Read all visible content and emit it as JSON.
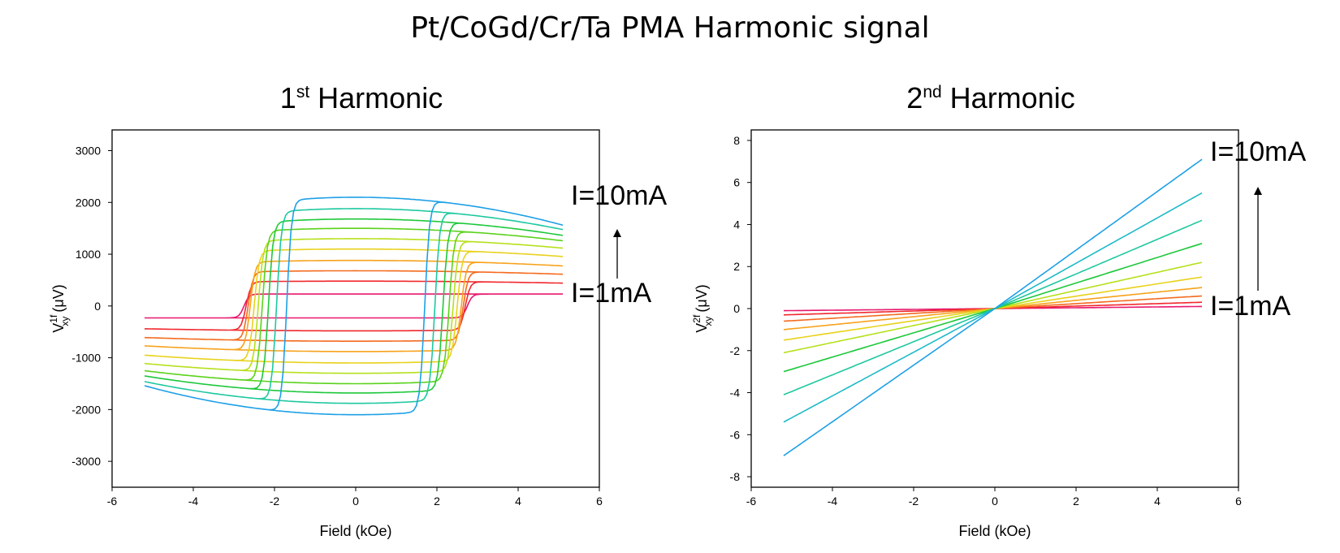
{
  "title": "Pt/CoGd/Cr/Ta PMA Harmonic signal",
  "chart_data": [
    {
      "type": "line",
      "title_main": "1",
      "title_sup": "st",
      "title_rest": " Harmonic",
      "xlabel": "Field (kOe)",
      "ylabel_prefix": "V",
      "ylabel_sup": "1f",
      "ylabel_sub": "xy",
      "ylabel_suffix": " (μV)",
      "xlim": [
        -6,
        6
      ],
      "ylim": [
        -3500,
        3400
      ],
      "xticks": [
        -6,
        -4,
        -2,
        0,
        2,
        4,
        6
      ],
      "yticks": [
        -3000,
        -2000,
        -1000,
        0,
        1000,
        2000,
        3000
      ],
      "x_range_data": [
        -5.2,
        5.1
      ],
      "series": [
        {
          "current_mA": 1,
          "color": "#e8196f",
          "saturation": 230,
          "switch_field": 2.75,
          "curvature": 0
        },
        {
          "current_mA": 2,
          "color": "#f0282e",
          "saturation": 480,
          "switch_field": 2.7,
          "curvature": 40
        },
        {
          "current_mA": 3,
          "color": "#f46a1e",
          "saturation": 680,
          "switch_field": 2.65,
          "curvature": 70
        },
        {
          "current_mA": 4,
          "color": "#f7a21c",
          "saturation": 880,
          "switch_field": 2.6,
          "curvature": 110
        },
        {
          "current_mA": 5,
          "color": "#e8d21c",
          "saturation": 1100,
          "switch_field": 2.5,
          "curvature": 150
        },
        {
          "current_mA": 6,
          "color": "#b6e01c",
          "saturation": 1300,
          "switch_field": 2.4,
          "curvature": 190
        },
        {
          "current_mA": 7,
          "color": "#5ad21c",
          "saturation": 1500,
          "switch_field": 2.3,
          "curvature": 250
        },
        {
          "current_mA": 8,
          "color": "#1ec83c",
          "saturation": 1680,
          "switch_field": 2.15,
          "curvature": 330
        },
        {
          "current_mA": 9,
          "color": "#1ec8a0",
          "saturation": 1880,
          "switch_field": 1.95,
          "curvature": 420
        },
        {
          "current_mA": 10,
          "color": "#1ea0e6",
          "saturation": 2100,
          "switch_field": 1.7,
          "curvature": 560
        }
      ],
      "annotation_top": "I=10mA",
      "annotation_bottom": "I=1mA"
    },
    {
      "type": "line",
      "title_main": "2",
      "title_sup": "nd",
      "title_rest": " Harmonic",
      "xlabel": "Field (kOe)",
      "ylabel_prefix": "V",
      "ylabel_sup": "2f",
      "ylabel_sub": "xy",
      "ylabel_suffix": " (μV)",
      "xlim": [
        -6,
        6
      ],
      "ylim": [
        -8.5,
        8.5
      ],
      "xticks": [
        -6,
        -4,
        -2,
        0,
        2,
        4,
        6
      ],
      "yticks": [
        -8,
        -6,
        -4,
        -2,
        0,
        2,
        4,
        6,
        8
      ],
      "x_range_data": [
        -5.2,
        5.1
      ],
      "series": [
        {
          "current_mA": 1,
          "color": "#e8196f",
          "end_left": -0.1,
          "end_right": 0.1
        },
        {
          "current_mA": 2,
          "color": "#f0282e",
          "end_left": -0.3,
          "end_right": 0.3
        },
        {
          "current_mA": 3,
          "color": "#f46a1e",
          "end_left": -0.6,
          "end_right": 0.6
        },
        {
          "current_mA": 4,
          "color": "#f7a21c",
          "end_left": -1.0,
          "end_right": 1.0
        },
        {
          "current_mA": 5,
          "color": "#e8d21c",
          "end_left": -1.5,
          "end_right": 1.5
        },
        {
          "current_mA": 6,
          "color": "#b6e01c",
          "end_left": -2.1,
          "end_right": 2.2
        },
        {
          "current_mA": 7,
          "color": "#1ec83c",
          "end_left": -3.0,
          "end_right": 3.1
        },
        {
          "current_mA": 8,
          "color": "#1ec8a0",
          "end_left": -4.1,
          "end_right": 4.2
        },
        {
          "current_mA": 9,
          "color": "#1ebac8",
          "end_left": -5.4,
          "end_right": 5.5
        },
        {
          "current_mA": 10,
          "color": "#1ea0e6",
          "end_left": -7.0,
          "end_right": 7.1
        }
      ],
      "annotation_top": "I=10mA",
      "annotation_bottom": "I=1mA"
    }
  ]
}
